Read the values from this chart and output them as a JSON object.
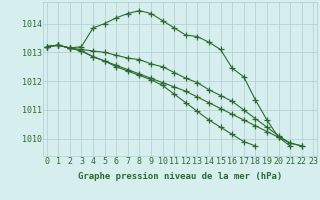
{
  "x": [
    0,
    1,
    2,
    3,
    4,
    5,
    6,
    7,
    8,
    9,
    10,
    11,
    12,
    13,
    14,
    15,
    16,
    17,
    18,
    19,
    20,
    21,
    22,
    23
  ],
  "series": [
    [
      1013.2,
      1013.25,
      1013.15,
      1013.2,
      1013.85,
      1014.0,
      1014.2,
      1014.35,
      1014.45,
      1014.35,
      1014.1,
      1013.85,
      1013.6,
      1013.55,
      1013.35,
      1013.1,
      1012.45,
      1012.15,
      1011.35,
      1010.65,
      1010.05,
      1009.75,
      null,
      null
    ],
    [
      1013.2,
      1013.25,
      1013.15,
      1013.1,
      1013.05,
      1013.0,
      1012.9,
      1012.8,
      1012.75,
      1012.6,
      1012.5,
      1012.3,
      1012.1,
      1011.95,
      1011.7,
      1011.5,
      1011.3,
      1011.0,
      1010.7,
      1010.4,
      1010.1,
      1009.85,
      1009.75,
      null
    ],
    [
      1013.2,
      1013.25,
      1013.15,
      1013.05,
      1012.85,
      1012.7,
      1012.55,
      1012.4,
      1012.25,
      1012.1,
      1011.95,
      1011.8,
      1011.65,
      1011.45,
      1011.25,
      1011.05,
      1010.85,
      1010.65,
      1010.45,
      1010.25,
      1010.05,
      1009.85,
      1009.75,
      null
    ],
    [
      1013.2,
      1013.25,
      1013.15,
      1013.05,
      1012.85,
      1012.7,
      1012.5,
      1012.35,
      1012.2,
      1012.05,
      1011.85,
      1011.55,
      1011.25,
      1010.95,
      1010.65,
      1010.4,
      1010.15,
      1009.9,
      1009.75,
      null,
      null,
      null,
      null,
      null
    ]
  ],
  "line_color": "#2d6a2d",
  "marker": "+",
  "markersize": 4,
  "linewidth": 0.8,
  "markeredgewidth": 0.9,
  "background_color": "#d6eeee",
  "grid_color": "#b0cccc",
  "ylabel_ticks": [
    1010,
    1011,
    1012,
    1013,
    1014
  ],
  "xlabel_ticks": [
    0,
    1,
    2,
    3,
    4,
    5,
    6,
    7,
    8,
    9,
    10,
    11,
    12,
    13,
    14,
    15,
    16,
    17,
    18,
    19,
    20,
    21,
    22,
    23
  ],
  "xlim": [
    -0.3,
    23.3
  ],
  "ylim": [
    1009.4,
    1014.75
  ],
  "xlabel": "Graphe pression niveau de la mer (hPa)",
  "xlabel_fontsize": 6.5,
  "tick_fontsize": 6.0,
  "label_color": "#2d6a2d"
}
